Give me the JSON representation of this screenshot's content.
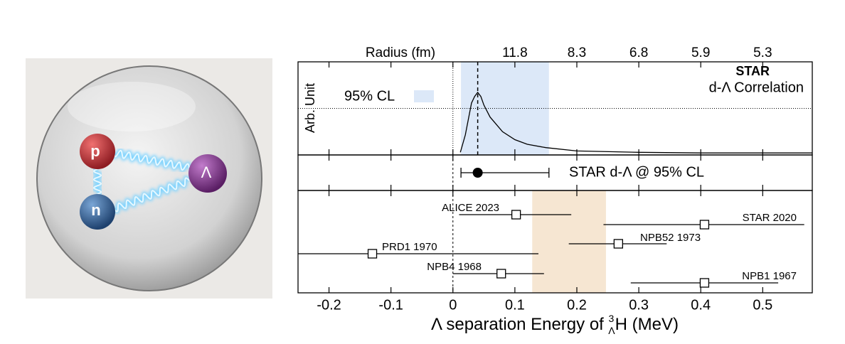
{
  "illustration": {
    "particles": [
      "p",
      "n",
      "Λ"
    ]
  },
  "chart_data": [
    {
      "type": "line",
      "title": "STAR",
      "subtitle": "d-Λ Correlation",
      "ylabel": "Arb. Unit",
      "top_axis": {
        "label": "Radius (fm)",
        "ticks": [
          {
            "value": 0.1,
            "label": "11.8"
          },
          {
            "value": 0.2,
            "label": "8.3"
          },
          {
            "value": 0.3,
            "label": "6.8"
          },
          {
            "value": 0.4,
            "label": "5.9"
          },
          {
            "value": 0.5,
            "label": "5.3"
          }
        ]
      },
      "x": [
        0.012,
        0.02,
        0.03,
        0.035,
        0.04,
        0.045,
        0.05,
        0.06,
        0.08,
        0.1,
        0.12,
        0.15,
        0.2,
        0.3,
        0.4,
        0.58
      ],
      "values": [
        0.04,
        0.3,
        0.78,
        0.88,
        0.94,
        0.88,
        0.75,
        0.57,
        0.35,
        0.23,
        0.16,
        0.11,
        0.06,
        0.04,
        0.03,
        0.03
      ],
      "color": "#000000",
      "band": {
        "name": "95% CL",
        "range": [
          0.013,
          0.155
        ],
        "color": "#dce8f8"
      },
      "peak_line": 0.04,
      "hline": 0.7,
      "vline": 0,
      "xlim": [
        -0.25,
        0.58
      ],
      "ylim": [
        0,
        1.4
      ]
    },
    {
      "type": "errorbar",
      "series": [
        {
          "name": "STAR d-Λ @ 95% CL",
          "values": [
            0.04
          ],
          "low": [
            0.013
          ],
          "high": [
            0.155
          ],
          "color": "#000000"
        }
      ],
      "vline": 0,
      "xlim": [
        -0.25,
        0.58
      ]
    },
    {
      "type": "errorbar",
      "categories": [
        "ALICE 2023",
        "STAR 2020",
        "NPB52 1973",
        "PRD1 1970",
        "NPB4 1968",
        "NPB1 1967"
      ],
      "values": [
        0.102,
        0.406,
        0.267,
        -0.13,
        0.078,
        0.406
      ],
      "low": [
        0.01,
        0.243,
        0.187,
        -0.25,
        0.0,
        0.287
      ],
      "high": [
        0.191,
        0.567,
        0.345,
        0.138,
        0.147,
        0.525
      ],
      "band": {
        "range": [
          0.128,
          0.247
        ],
        "color": "#f6e6d2"
      },
      "vline": 0,
      "xlim": [
        -0.25,
        0.58
      ],
      "xticks": [
        -0.2,
        -0.1,
        0,
        0.1,
        0.2,
        0.3,
        0.4,
        0.5
      ],
      "xlabel": {
        "pre": "Λ separation Energy of ",
        "sup": "3",
        "sub": "Λ",
        "post": "H (MeV)"
      }
    }
  ]
}
